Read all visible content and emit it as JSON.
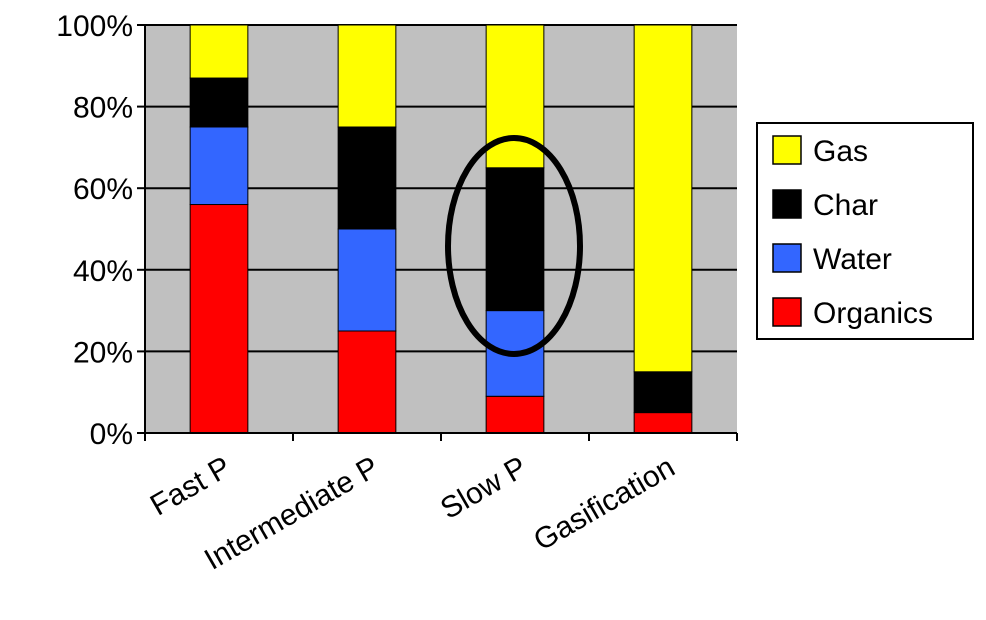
{
  "chart_data": {
    "type": "bar",
    "stacked": true,
    "percent_axis": true,
    "categories": [
      "Fast P",
      "Intermediate P",
      "Slow P",
      "Gasification"
    ],
    "series": [
      {
        "name": "Organics",
        "color": "#ff0000",
        "values": [
          56,
          25,
          9,
          5
        ]
      },
      {
        "name": "Water",
        "color": "#3366ff",
        "values": [
          19,
          25,
          21,
          0
        ]
      },
      {
        "name": "Char",
        "color": "#000000",
        "values": [
          12,
          25,
          35,
          10
        ]
      },
      {
        "name": "Gas",
        "color": "#ffff00",
        "values": [
          13,
          25,
          35,
          85
        ]
      }
    ],
    "yticks": [
      "0%",
      "20%",
      "40%",
      "60%",
      "80%",
      "100%"
    ],
    "ylim": [
      0,
      100
    ],
    "plot_background": "#c0c0c0",
    "grid": true,
    "legend_position": "right",
    "legend_order": [
      "Gas",
      "Char",
      "Water",
      "Organics"
    ],
    "annotation": {
      "shape": "ellipse",
      "highlights": "Slow P"
    }
  }
}
